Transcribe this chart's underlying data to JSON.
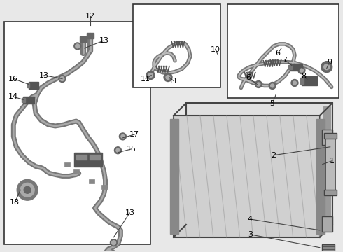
{
  "bg_color": "#e8e8e8",
  "border_color": "#333333",
  "line_color": "#444444",
  "label_color": "#000000",
  "white": "#ffffff",
  "gray_light": "#cccccc",
  "gray_mid": "#999999",
  "gray_dark": "#555555"
}
